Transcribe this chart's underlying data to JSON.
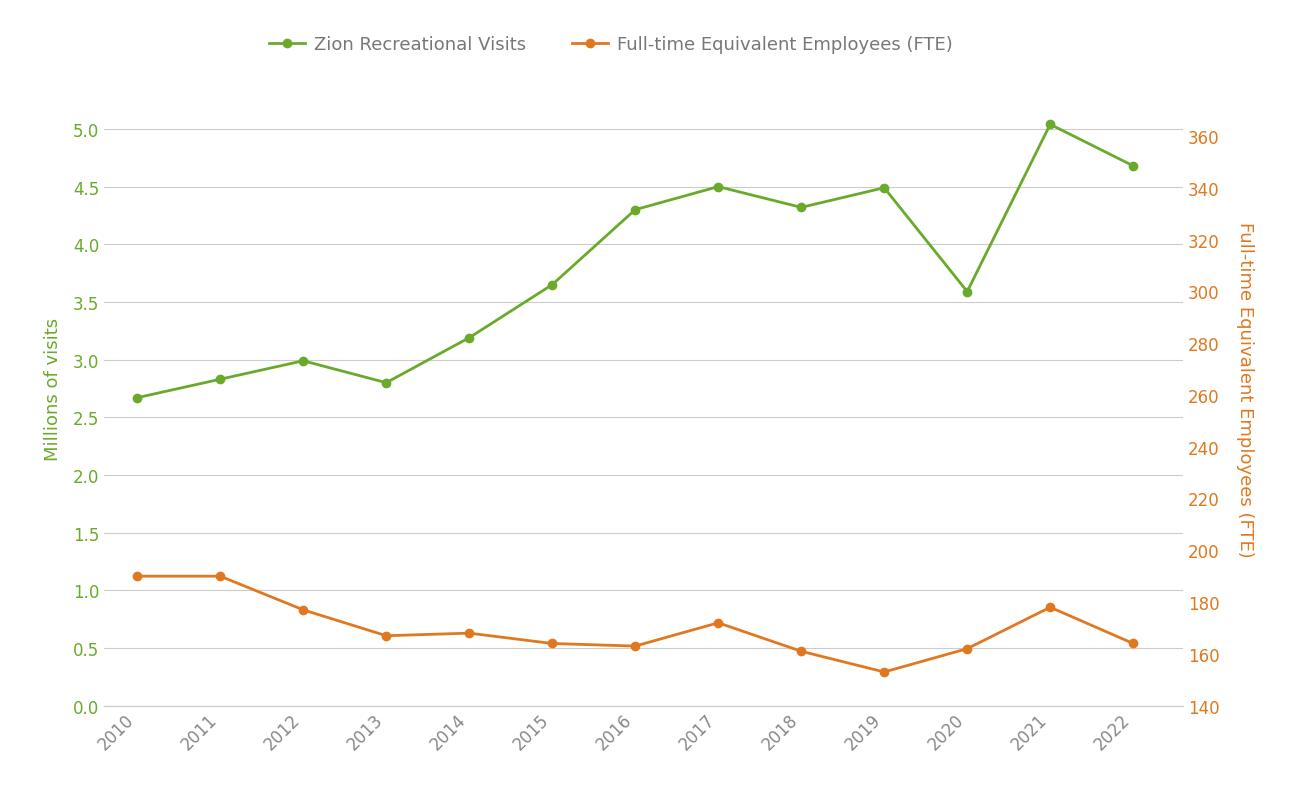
{
  "years": [
    2010,
    2011,
    2012,
    2013,
    2014,
    2015,
    2016,
    2017,
    2018,
    2019,
    2020,
    2021,
    2022
  ],
  "visits": [
    2.67,
    2.83,
    2.99,
    2.8,
    3.19,
    3.65,
    4.3,
    4.5,
    4.32,
    4.49,
    3.59,
    5.04,
    4.68
  ],
  "fte_actual": [
    190,
    190,
    177,
    167,
    168,
    164,
    163,
    172,
    161,
    153,
    162,
    178,
    164
  ],
  "visits_color": "#6aaa2a",
  "fte_color": "#e07820",
  "legend_text_color": "#777777",
  "axis_label_color_left": "#6aaa2a",
  "axis_label_color_right": "#e07820",
  "tick_color": "#888888",
  "grid_color": "#cccccc",
  "background_color": "#ffffff",
  "left_label": "Millions of visits",
  "right_label": "Full-time Equivalent Employees (FTE)",
  "legend_visits": "Zion Recreational Visits",
  "legend_fte": "Full-time Equivalent Employees (FTE)",
  "ylim_left": [
    0.0,
    5.5
  ],
  "ylim_right": [
    140,
    385
  ],
  "yticks_left": [
    0.0,
    0.5,
    1.0,
    1.5,
    2.0,
    2.5,
    3.0,
    3.5,
    4.0,
    4.5,
    5.0
  ],
  "yticks_right": [
    140,
    160,
    180,
    200,
    220,
    240,
    260,
    280,
    300,
    320,
    340,
    360
  ],
  "marker": "o",
  "markersize": 6,
  "linewidth": 2.0
}
